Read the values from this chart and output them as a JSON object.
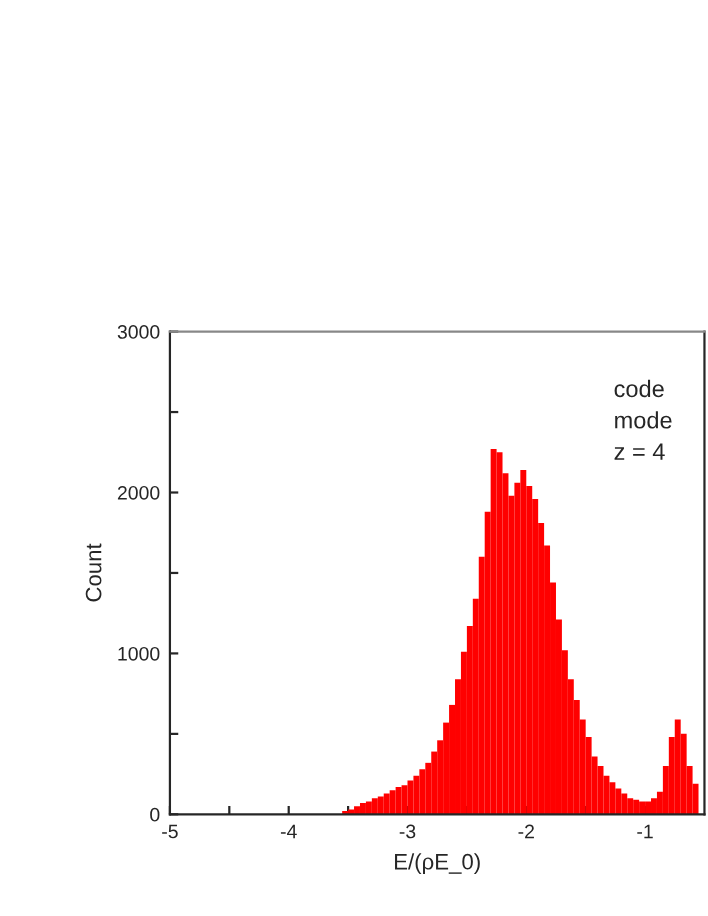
{
  "chart_data": {
    "type": "histogram",
    "xlabel": "E/(ρE_0)",
    "ylabel": "Count",
    "annotations": [
      "code",
      "mode",
      "z = 4"
    ],
    "color": "#ff0000",
    "bins": [
      -3.6,
      -3.55,
      -3.5,
      -3.45,
      -3.4,
      -3.35,
      -3.3,
      -3.25,
      -3.2,
      -3.15,
      -3.1,
      -3.05,
      -3.0,
      -2.95,
      -2.9,
      -2.85,
      -2.8,
      -2.75,
      -2.7,
      -2.65,
      -2.6,
      -2.55,
      -2.5,
      -2.45,
      -2.4,
      -2.35,
      -2.3,
      -2.25,
      -2.2,
      -2.15,
      -2.1,
      -2.05,
      -2.0,
      -1.95,
      -1.9,
      -1.85,
      -1.8,
      -1.75,
      -1.7,
      -1.65,
      -1.6,
      -1.55,
      -1.5,
      -1.45,
      -1.4,
      -1.35,
      -1.3,
      -1.25,
      -1.2,
      -1.15,
      -1.1,
      -1.05,
      -1.0,
      -0.95,
      -0.9,
      -0.85,
      -0.8,
      -0.75,
      -0.7,
      -0.65,
      -0.6,
      -0.55
    ],
    "values": [
      0,
      20,
      30,
      50,
      70,
      80,
      100,
      110,
      130,
      150,
      170,
      180,
      210,
      240,
      280,
      320,
      390,
      460,
      570,
      680,
      840,
      1010,
      1170,
      1340,
      1600,
      1880,
      2270,
      2250,
      2120,
      1980,
      2060,
      2140,
      2040,
      1960,
      1810,
      1670,
      1440,
      1210,
      1020,
      840,
      710,
      590,
      480,
      360,
      300,
      240,
      200,
      160,
      130,
      100,
      90,
      80,
      80,
      100,
      140,
      300,
      480,
      590,
      500,
      300,
      190
    ],
    "xlim": [
      -5,
      -0.5
    ],
    "xticks": [
      -5,
      {
        "value": -4.5,
        "label": null
      },
      -4,
      {
        "value": -3.5,
        "label": null
      },
      -3,
      {
        "value": -2.5,
        "label": null
      },
      -2,
      {
        "value": -1.5,
        "label": null
      },
      -1
    ],
    "ylim": [
      0,
      3000
    ],
    "yticks": [
      0,
      {
        "value": 500,
        "label": null
      },
      1000,
      {
        "value": 1500,
        "label": null
      },
      2000,
      {
        "value": 2500,
        "label": null
      },
      3000
    ],
    "grid": false,
    "legend": false
  }
}
